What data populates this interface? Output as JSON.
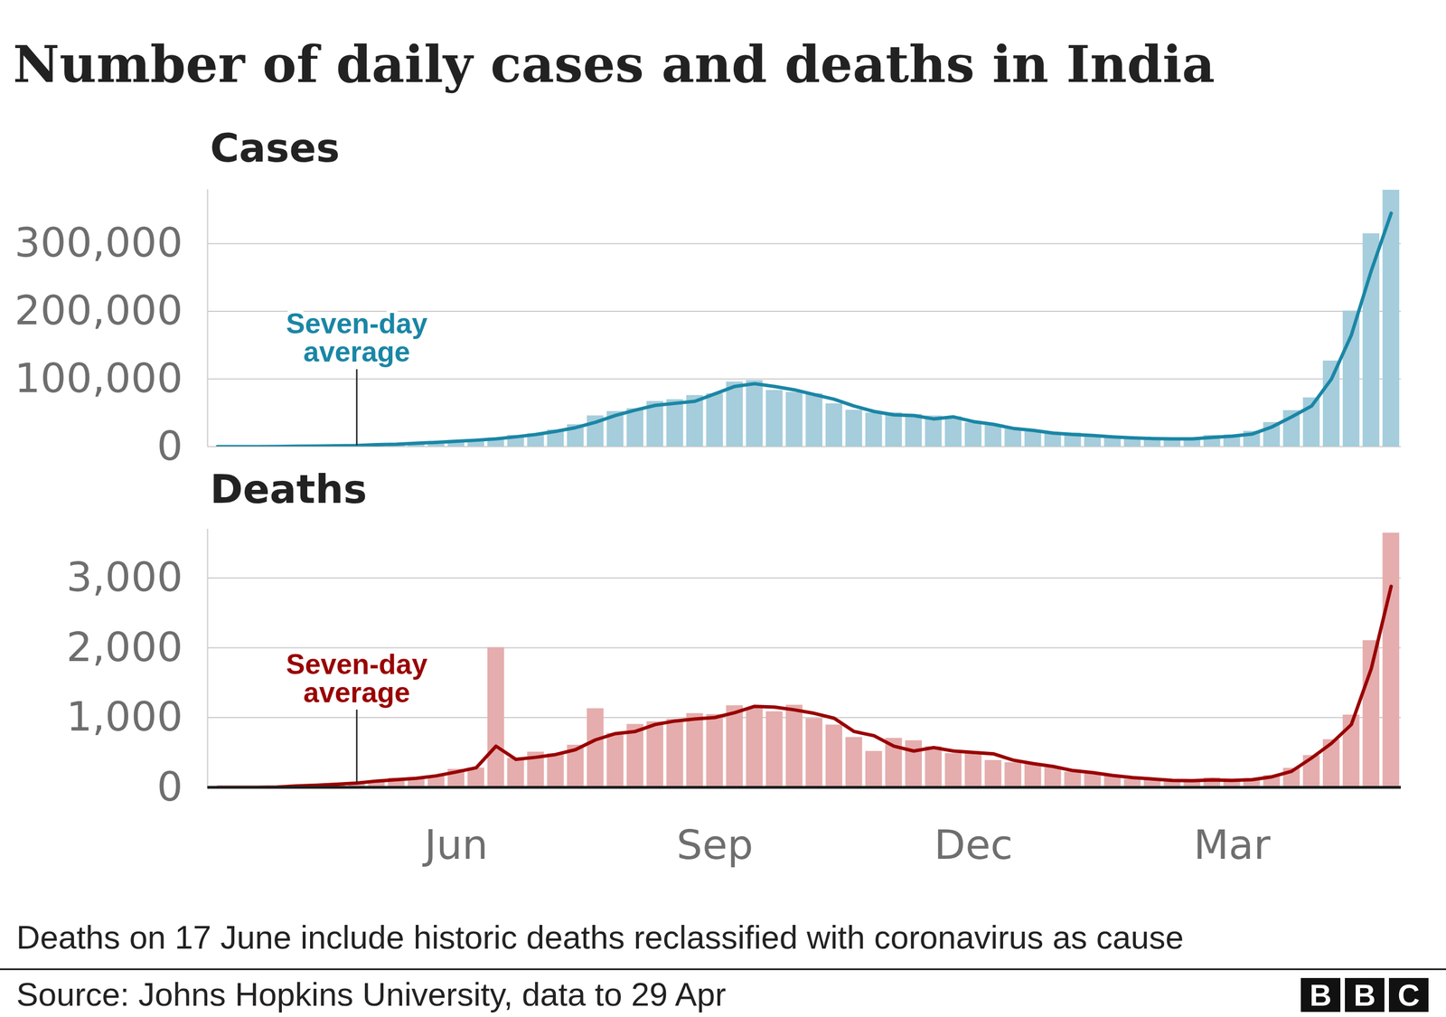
{
  "title": "Number of daily cases and deaths in India",
  "chart_data": [
    {
      "type": "bar",
      "title": "Cases",
      "categories": [
        null,
        null,
        null,
        null,
        null,
        null,
        null,
        null,
        null,
        null,
        null,
        null,
        "Jun",
        null,
        null,
        null,
        null,
        null,
        null,
        null,
        null,
        null,
        null,
        null,
        null,
        "Sep",
        null,
        null,
        null,
        null,
        null,
        null,
        null,
        null,
        null,
        null,
        null,
        null,
        "Dec",
        null,
        null,
        null,
        null,
        null,
        null,
        null,
        null,
        null,
        null,
        null,
        null,
        "Mar",
        null,
        null,
        null,
        null,
        null,
        null,
        null,
        null
      ],
      "series": [
        {
          "type": "bar",
          "color": "#a5cddc",
          "values": [
            12,
            14,
            86,
            437,
            773,
            1061,
            1486,
            1823,
            3561,
            3722,
            5611,
            6566,
            9304,
            9985,
            12881,
            16922,
            19148,
            24879,
            32695,
            45720,
            52123,
            56282,
            66999,
            69652,
            75760,
            78357,
            95735,
            97894,
            83347,
            80472,
            78524,
            63509,
            54044,
            49881,
            50210,
            47905,
            45576,
            44376,
            35551,
            31521,
            26382,
            24712,
            20549,
            20346,
            15968,
            15223,
            12689,
            12899,
            12923,
            12881,
            16738,
            17407,
            22854,
            35871,
            53476,
            72330,
            126789,
            200739,
            314835,
            379257
          ]
        },
        {
          "name": "Seven-day average",
          "type": "line",
          "color": "#1a86a5",
          "values": [
            10,
            20,
            80,
            300,
            600,
            900,
            1300,
            1700,
            3000,
            3600,
            5000,
            6300,
            8000,
            9500,
            11500,
            14500,
            18000,
            22500,
            28000,
            36000,
            46000,
            54000,
            61000,
            64000,
            67000,
            78000,
            89000,
            93000,
            89000,
            84000,
            77000,
            70000,
            60000,
            52000,
            47000,
            46000,
            41000,
            44000,
            37000,
            33000,
            27000,
            24000,
            20000,
            18000,
            16500,
            14500,
            13000,
            12000,
            11500,
            11500,
            13500,
            15500,
            18500,
            29000,
            44000,
            60000,
            100000,
            165000,
            260000,
            345000
          ]
        }
      ],
      "ylim": [
        0,
        380000
      ],
      "yticks": [
        0,
        {
          "value": 100000,
          "label": "100,000"
        },
        {
          "value": 200000,
          "label": "200,000"
        },
        {
          "value": 300000,
          "label": "300,000"
        }
      ],
      "grid": true,
      "tick_labels": "y"
    },
    {
      "type": "bar",
      "title": "Deaths",
      "categories": [
        null,
        null,
        null,
        null,
        null,
        null,
        null,
        null,
        null,
        null,
        null,
        null,
        "Jun",
        null,
        null,
        null,
        null,
        null,
        null,
        null,
        null,
        null,
        null,
        null,
        null,
        "Sep",
        null,
        null,
        null,
        null,
        null,
        null,
        null,
        null,
        null,
        null,
        null,
        null,
        "Dec",
        null,
        null,
        null,
        null,
        null,
        null,
        null,
        null,
        null,
        null,
        null,
        null,
        "Mar",
        null,
        null,
        null,
        null,
        null,
        null,
        null,
        null
      ],
      "series": [
        {
          "type": "bar",
          "color": "#e5adad",
          "values": [
            0,
            0,
            1,
            8,
            32,
            36,
            50,
            70,
            90,
            134,
            140,
            170,
            260,
            279,
            2003,
            418,
            507,
            482,
            606,
            1129,
            775,
            904,
            942,
            977,
            1059,
            1045,
            1172,
            1132,
            1085,
            1179,
            986,
            895,
            717,
            517,
            704,
            670,
            585,
            485,
            482,
            387,
            355,
            333,
            286,
            222,
            202,
            162,
            117,
            107,
            108,
            101,
            138,
            108,
            126,
            171,
            275,
            458,
            685,
            1038,
            2104,
            3645
          ]
        },
        {
          "name": "Seven-day average",
          "type": "line",
          "color": "#990000",
          "values": [
            0,
            0.3,
            1,
            4,
            20,
            30,
            45,
            60,
            90,
            110,
            130,
            165,
            220,
            280,
            590,
            400,
            430,
            470,
            540,
            680,
            770,
            800,
            900,
            950,
            980,
            1000,
            1070,
            1160,
            1150,
            1110,
            1060,
            990,
            800,
            740,
            590,
            520,
            570,
            520,
            500,
            480,
            390,
            340,
            300,
            240,
            210,
            170,
            140,
            120,
            100,
            95,
            105,
            100,
            110,
            150,
            230,
            420,
            630,
            900,
            1700,
            2880
          ]
        }
      ],
      "ylim": [
        0,
        3700
      ],
      "yticks": [
        0,
        {
          "value": 1000,
          "label": "1,000"
        },
        {
          "value": 2000,
          "label": "2,000"
        },
        {
          "value": 3000,
          "label": "3,000"
        }
      ],
      "grid": true
    }
  ],
  "note": "Deaths on 17 June include historic deaths reclassified with coronavirus as cause",
  "source": "Source: Johns Hopkins University, data to 29 Apr",
  "logo": "BBC"
}
